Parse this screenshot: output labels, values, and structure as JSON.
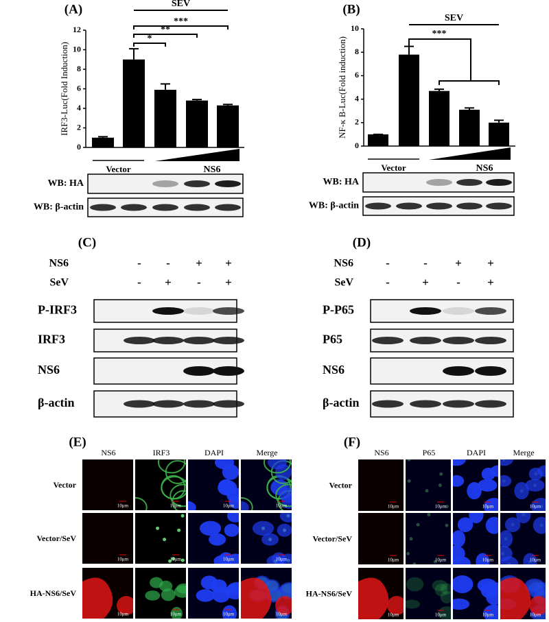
{
  "chart_data": [
    {
      "type": "bar",
      "panel": "(A)",
      "y_label": "IRF3-Luc(Fold Induction)",
      "categories": [
        null,
        null,
        null,
        null,
        null
      ],
      "values": [
        1.0,
        9.0,
        5.9,
        4.8,
        4.3
      ],
      "errors": [
        0.1,
        1.1,
        0.6,
        0.1,
        0.1
      ],
      "color": "#000000",
      "ylim": [
        0,
        12
      ],
      "yticks": [
        0,
        2,
        4,
        6,
        8,
        10,
        12
      ],
      "group_label": "SEV",
      "significance": [
        "*",
        "**",
        "***"
      ],
      "control_label": "Vector",
      "treatment_label": "NS6",
      "blots": [
        "WB: HA",
        "WB: β-actin"
      ]
    },
    {
      "type": "bar",
      "panel": "(B)",
      "y_label": "NF-κ B-Luc(Fold induction)",
      "categories": [
        null,
        null,
        null,
        null,
        null
      ],
      "values": [
        1.0,
        7.8,
        4.7,
        3.1,
        2.0
      ],
      "errors": [
        0.0,
        0.7,
        0.15,
        0.15,
        0.2
      ],
      "color": "#000000",
      "ylim": [
        0,
        10
      ],
      "yticks": [
        0,
        2,
        4,
        6,
        8,
        10
      ],
      "group_label": "SEV",
      "significance": [
        "***"
      ],
      "control_label": "Vector",
      "treatment_label": "NS6",
      "blots": [
        "WB: HA",
        "WB: β-actin"
      ]
    }
  ],
  "blot_panels": [
    {
      "panel": "(C)",
      "treatments": [
        {
          "name": "NS6",
          "signs": [
            "-",
            "-",
            "+",
            "+"
          ]
        },
        {
          "name": "SeV",
          "signs": [
            "-",
            "+",
            "-",
            "+"
          ]
        }
      ],
      "rows": [
        "P-IRF3",
        "IRF3",
        "NS6",
        "β-actin"
      ]
    },
    {
      "panel": "(D)",
      "treatments": [
        {
          "name": "NS6",
          "signs": [
            "-",
            "-",
            "+",
            "+"
          ]
        },
        {
          "name": "SeV",
          "signs": [
            "-",
            "+",
            "-",
            "+"
          ]
        }
      ],
      "rows": [
        "P-P65",
        "P65",
        "NS6",
        "β-actin"
      ]
    }
  ],
  "imaging_panels": [
    {
      "panel": "(E)",
      "columns": [
        "NS6",
        "IRF3",
        "DAPI",
        "Merge"
      ],
      "rows": [
        "Vector",
        "Vector/SeV",
        "HA-NS6/SeV"
      ],
      "scale_bar": "10μm"
    },
    {
      "panel": "(F)",
      "columns": [
        "NS6",
        "P65",
        "DAPI",
        "Merge"
      ],
      "rows": [
        "Vector",
        "Vector/SeV",
        "HA-NS6/SeV"
      ],
      "scale_bar": "10μm"
    }
  ]
}
